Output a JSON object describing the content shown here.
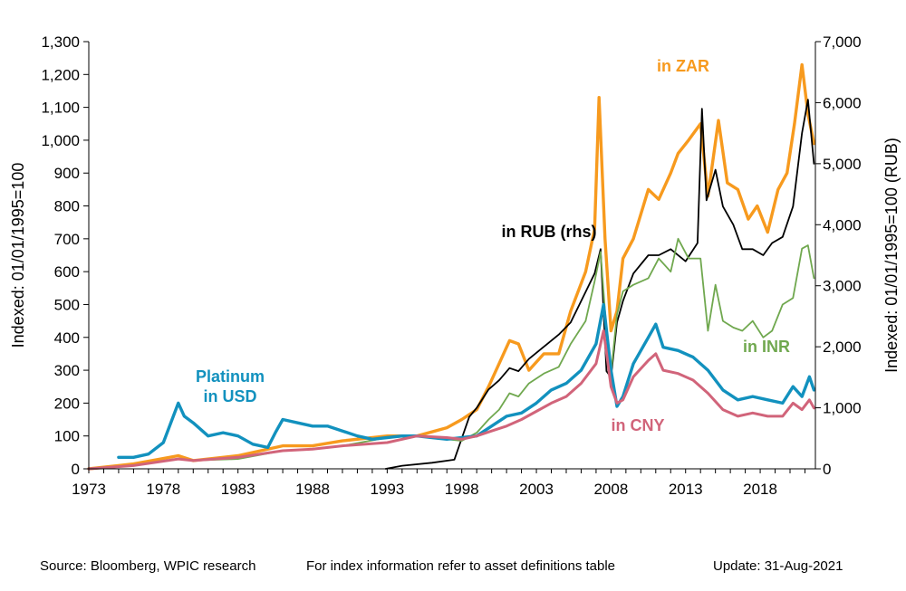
{
  "chart_data": {
    "type": "line",
    "left_axis": {
      "label": "Indexed:  01/01/1995=100",
      "ticks": [
        "0",
        "100",
        "200",
        "300",
        "400",
        "500",
        "600",
        "700",
        "800",
        "900",
        "1,000",
        "1,100",
        "1,200",
        "1,300"
      ],
      "range": [
        0,
        1300
      ]
    },
    "right_axis": {
      "label": "Indexed:  01/01/1995=100  (RUB)",
      "ticks": [
        "0",
        "1,000",
        "2,000",
        "3,000",
        "4,000",
        "5,000",
        "6,000",
        "7,000"
      ],
      "range": [
        0,
        7000
      ]
    },
    "x_axis": {
      "ticks": [
        "1973",
        "1978",
        "1983",
        "1988",
        "1993",
        "1998",
        "2003",
        "2008",
        "2013",
        "2018"
      ],
      "range": [
        1973,
        2021.7
      ]
    },
    "grid": false,
    "series": [
      {
        "name": "in ZAR",
        "label_lines": [
          "in ZAR"
        ],
        "color": "#F79A1E",
        "axis": "left",
        "x": [
          1973,
          1976,
          1979,
          1980,
          1983,
          1986,
          1988,
          1990,
          1993,
          1995,
          1997,
          1998,
          1999,
          1999.8,
          2000.5,
          2001.2,
          2001.8,
          2002.5,
          2003.5,
          2004.5,
          2005.3,
          2006.3,
          2006.9,
          2007.2,
          2007.6,
          2008,
          2008.4,
          2008.8,
          2009.5,
          2010.5,
          2011.2,
          2012,
          2012.5,
          2013.2,
          2014,
          2014.5,
          2015.2,
          2015.8,
          2016.5,
          2017.2,
          2017.8,
          2018.5,
          2019.2,
          2019.8,
          2020.3,
          2020.8,
          2021.2,
          2021.6
        ],
        "y": [
          0,
          15,
          40,
          25,
          40,
          70,
          70,
          85,
          100,
          100,
          125,
          150,
          180,
          250,
          320,
          390,
          380,
          300,
          350,
          350,
          480,
          600,
          730,
          1130,
          700,
          420,
          480,
          640,
          700,
          850,
          820,
          900,
          960,
          1000,
          1050,
          830,
          1060,
          870,
          850,
          760,
          800,
          720,
          850,
          900,
          1050,
          1230,
          1080,
          990
        ]
      },
      {
        "name": "in RUB (rhs)",
        "label_lines": [
          "in RUB (rhs)"
        ],
        "color": "#000000",
        "axis": "right",
        "x": [
          1992.9,
          1994,
          1996,
          1997.5,
          1998.0,
          1998.5,
          1999,
          1999.8,
          2000.5,
          2001.2,
          2001.8,
          2002.5,
          2003.5,
          2004.5,
          2005.3,
          2006.3,
          2006.9,
          2007.3,
          2007.7,
          2008,
          2008.4,
          2008.8,
          2009.5,
          2010.5,
          2011.2,
          2012,
          2013,
          2013.8,
          2014.1,
          2014.4,
          2015,
          2015.5,
          2016.2,
          2016.8,
          2017.5,
          2018.2,
          2018.8,
          2019.5,
          2020.2,
          2020.8,
          2021.2,
          2021.6
        ],
        "y": [
          0,
          50,
          100,
          150,
          500,
          850,
          1000,
          1300,
          1450,
          1650,
          1600,
          1800,
          2000,
          2200,
          2400,
          2900,
          3200,
          3600,
          1600,
          1500,
          2400,
          2750,
          3200,
          3500,
          3500,
          3600,
          3400,
          3700,
          5900,
          4400,
          4900,
          4300,
          4000,
          3600,
          3600,
          3500,
          3700,
          3800,
          4300,
          5500,
          6050,
          5000
        ]
      },
      {
        "name": "in INR",
        "label_lines": [
          "in INR"
        ],
        "color": "#70A84F",
        "axis": "left",
        "x": [
          1973,
          1976,
          1979,
          1980,
          1983,
          1986,
          1988,
          1990,
          1993,
          1995,
          1997,
          1998,
          1999,
          1999.8,
          2000.5,
          2001.2,
          2001.8,
          2002.5,
          2003.5,
          2004.5,
          2005.3,
          2006.3,
          2006.9,
          2007.3,
          2007.7,
          2008,
          2008.4,
          2008.8,
          2009.5,
          2010.5,
          2011.2,
          2012,
          2012.5,
          2013.2,
          2014,
          2014.5,
          2015,
          2015.5,
          2016.2,
          2016.8,
          2017.5,
          2018.2,
          2018.8,
          2019.5,
          2020.2,
          2020.8,
          2021.2,
          2021.6
        ],
        "y": [
          0,
          10,
          30,
          25,
          30,
          55,
          60,
          70,
          95,
          100,
          90,
          85,
          110,
          150,
          180,
          230,
          220,
          260,
          290,
          310,
          380,
          450,
          570,
          660,
          420,
          290,
          470,
          540,
          560,
          580,
          640,
          600,
          700,
          640,
          640,
          420,
          560,
          450,
          430,
          420,
          450,
          400,
          420,
          500,
          520,
          670,
          680,
          580
        ]
      },
      {
        "name": "Platinum in USD",
        "label_lines": [
          "Platinum",
          "in USD"
        ],
        "color": "#1291BE",
        "axis": "left",
        "x": [
          1975,
          1976,
          1977,
          1978,
          1979,
          1979.4,
          1980,
          1981,
          1982,
          1983,
          1984,
          1985,
          1985.5,
          1986,
          1987,
          1988,
          1989,
          1990,
          1991,
          1992,
          1993,
          1994,
          1995,
          1996,
          1997,
          1998,
          1999,
          2000,
          2001,
          2002,
          2003,
          2004,
          2005,
          2006,
          2007,
          2007.5,
          2008,
          2008.4,
          2008.8,
          2009.5,
          2010.5,
          2011,
          2011.5,
          2012.5,
          2013.5,
          2014.5,
          2015.5,
          2016.5,
          2017.5,
          2018.5,
          2019.5,
          2020.2,
          2020.8,
          2021.3,
          2021.6
        ],
        "y": [
          35,
          35,
          45,
          80,
          200,
          160,
          140,
          100,
          110,
          100,
          75,
          65,
          110,
          150,
          140,
          130,
          130,
          115,
          100,
          90,
          95,
          100,
          100,
          95,
          90,
          95,
          100,
          130,
          160,
          170,
          200,
          240,
          260,
          300,
          380,
          500,
          300,
          190,
          220,
          320,
          400,
          440,
          370,
          360,
          340,
          300,
          240,
          210,
          220,
          210,
          200,
          250,
          220,
          280,
          240
        ]
      },
      {
        "name": "in CNY",
        "label_lines": [
          "in CNY"
        ],
        "color": "#D1647A",
        "axis": "left",
        "x": [
          1973,
          1976,
          1979,
          1980,
          1983,
          1986,
          1988,
          1990,
          1993,
          1995,
          1997,
          1998,
          1999,
          2000,
          2001,
          2002,
          2003,
          2004,
          2005,
          2006,
          2007,
          2007.5,
          2008,
          2008.4,
          2008.8,
          2009.5,
          2010.5,
          2011,
          2011.5,
          2012.5,
          2013.5,
          2014.5,
          2015.5,
          2016.5,
          2017.5,
          2018.5,
          2019.5,
          2020.2,
          2020.8,
          2021.3,
          2021.6
        ],
        "y": [
          0,
          10,
          30,
          25,
          35,
          55,
          60,
          70,
          80,
          100,
          95,
          90,
          100,
          115,
          130,
          150,
          175,
          200,
          220,
          260,
          320,
          420,
          250,
          200,
          210,
          280,
          330,
          350,
          300,
          290,
          270,
          230,
          180,
          160,
          170,
          160,
          160,
          200,
          180,
          210,
          185
        ]
      }
    ]
  },
  "footer": {
    "source": "Source: Bloomberg, WPIC research",
    "note": "For index information refer to asset definitions table",
    "update": "Update: 31-Aug-2021"
  }
}
